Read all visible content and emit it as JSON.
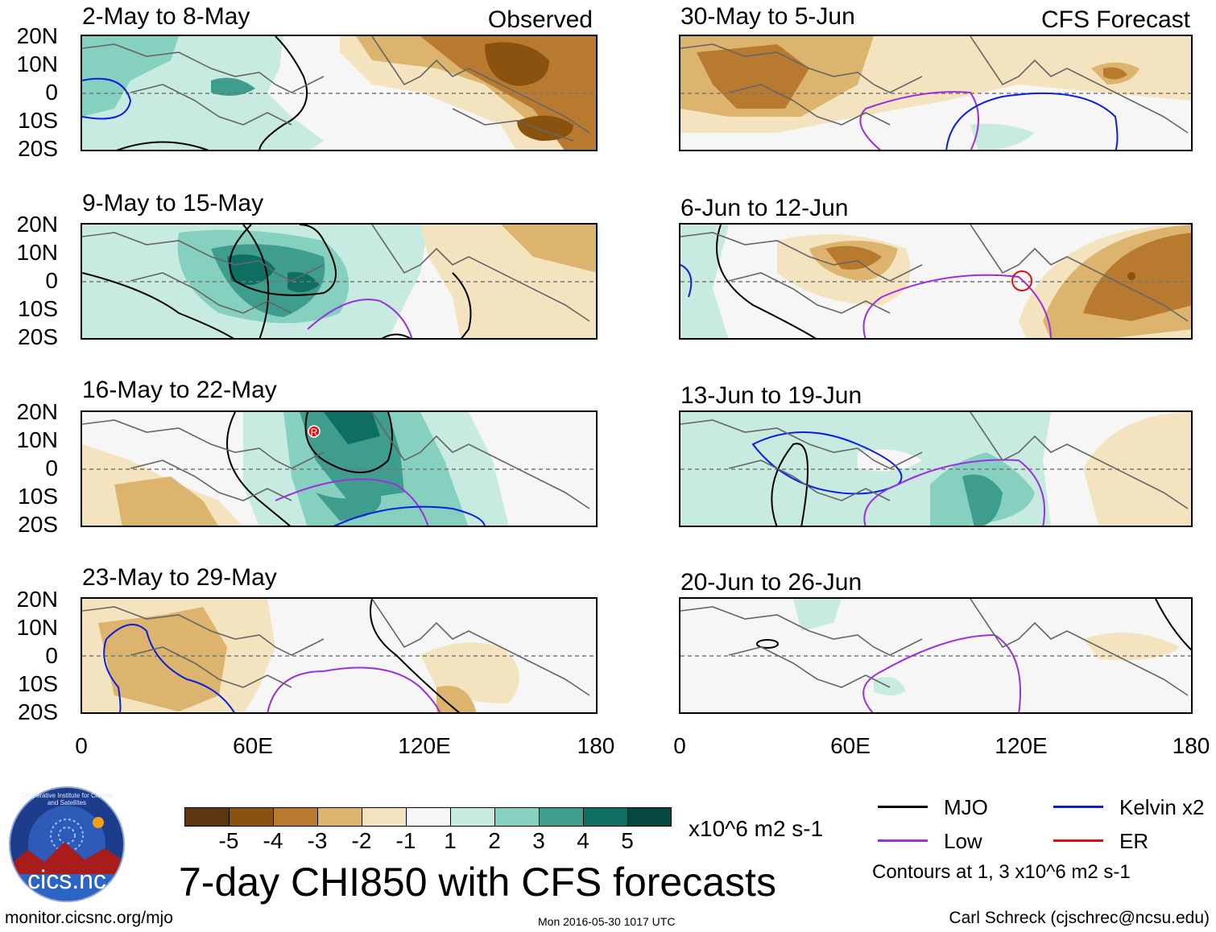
{
  "panels": {
    "obs1": {
      "title": "2-May to 8-May",
      "label": "Observed"
    },
    "obs2": {
      "title": "9-May to 15-May"
    },
    "obs3": {
      "title": "16-May to 22-May",
      "marker": "R"
    },
    "obs4": {
      "title": "23-May to 29-May"
    },
    "fc1": {
      "title": "30-May to 5-Jun",
      "label": "CFS Forecast"
    },
    "fc2": {
      "title": "6-Jun to 12-Jun"
    },
    "fc3": {
      "title": "13-Jun to 19-Jun"
    },
    "fc4": {
      "title": "20-Jun to 26-Jun"
    }
  },
  "axes": {
    "y_labels": [
      "20N",
      "10N",
      "0",
      "10S",
      "20S"
    ],
    "x_labels": [
      "0",
      "60E",
      "120E",
      "180"
    ]
  },
  "colorbar": {
    "labels": [
      "-5",
      "-4",
      "-3",
      "-2",
      "-1",
      "1",
      "2",
      "3",
      "4",
      "5"
    ],
    "units": "x10^6 m2 s-1",
    "colors": [
      "#5c3610",
      "#8a520f",
      "#b87a2e",
      "#dcb46e",
      "#f3e4bf",
      "#f6f6f6",
      "#c8ebe1",
      "#86d0c0",
      "#3e9d8d",
      "#0e6e62",
      "#04483f"
    ]
  },
  "title": "7-day CHI850 with CFS forecasts",
  "legend": {
    "mjo": {
      "label": "MJO",
      "color": "#000000"
    },
    "low": {
      "label": "Low",
      "color": "#9b30e0"
    },
    "kelvin": {
      "label": "Kelvin x2",
      "color": "#0a1ee0"
    },
    "er": {
      "label": "ER",
      "color": "#e01010"
    },
    "note": "Contours at 1, 3 x10^6 m2 s-1"
  },
  "logo": {
    "text": "cics.nc",
    "ring_text": "Cooperative Institute for Climate and Satellites"
  },
  "footer": {
    "left": "monitor.cicsnc.org/mjo",
    "center": "Mon 2016-05-30 1017 UTC",
    "right": "Carl Schreck (cjschrec@ncsu.edu)"
  }
}
